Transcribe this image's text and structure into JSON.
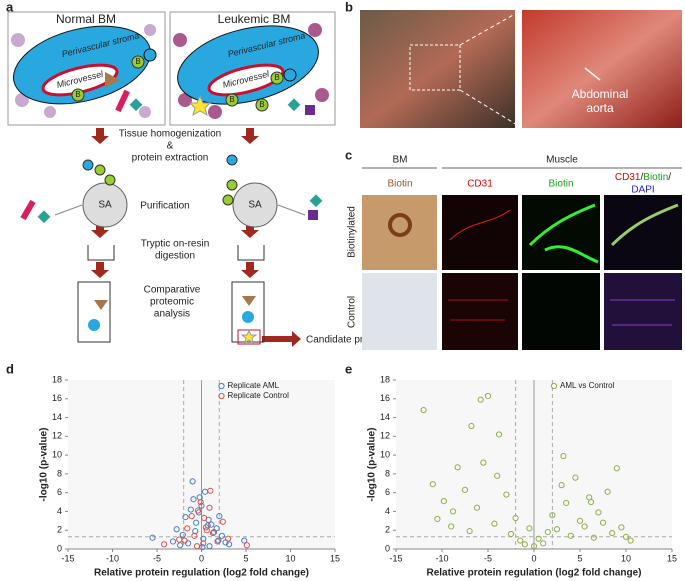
{
  "panel_a": {
    "label": "a",
    "normal_title": "Normal BM",
    "leukemic_title": "Leukemic BM",
    "stroma": "Perivascular stroma",
    "microvessel": "Microvessel",
    "biotin": "B",
    "sa": "SA",
    "step1": [
      "Tissue homogenization",
      "&",
      "protein extraction"
    ],
    "step2": "Purification",
    "step3": [
      "Tryptic on-resin",
      "digestion"
    ],
    "step4": [
      "Comparative",
      "proteomic",
      "analysis"
    ],
    "candidate": "Candidate protein"
  },
  "panel_b": {
    "label": "b",
    "annotation": [
      "Abdominal",
      "aorta"
    ]
  },
  "panel_c": {
    "label": "c",
    "group_headers": [
      "BM",
      "Muscle"
    ],
    "columns": [
      "Biotin",
      "CD31",
      "Biotin"
    ],
    "merge_label": [
      "CD31",
      "/",
      "Biotin",
      "/",
      "DAPI"
    ],
    "rows": [
      "Biotinylated",
      "Control"
    ]
  },
  "chart_data": [
    {
      "type": "scatter",
      "panel_label": "d",
      "xlabel": "Relative protein regulation (log2 fold change)",
      "ylabel": "-log10 (p-value)",
      "xlim": [
        -15,
        15
      ],
      "xticks": [
        -15,
        -10,
        -5,
        0,
        5,
        10,
        15
      ],
      "ylim": [
        0,
        18
      ],
      "yticks": [
        0,
        2,
        4,
        6,
        8,
        10,
        12,
        14,
        16,
        18
      ],
      "threshold_x": [
        -2,
        2
      ],
      "threshold_y": 1.3,
      "legend": "top",
      "series": [
        {
          "name": "Replicate AML",
          "color": "#4a7fc1",
          "x": [
            -5.5,
            -3.2,
            -2.8,
            -2.1,
            -1.8,
            -1.2,
            -0.9,
            -0.6,
            -0.3,
            0,
            0.2,
            0.5,
            0.8,
            1.1,
            1.4,
            1.9,
            2.3,
            2.7,
            3.1,
            -1.5,
            0.4,
            -0.2,
            1.7,
            -2.4,
            0.9,
            2.0,
            -0.7,
            0.1,
            4.8,
            -1.0
          ],
          "values": [
            1.2,
            0.8,
            2.1,
            1.5,
            3.4,
            4.2,
            5.3,
            2.8,
            3.9,
            4.6,
            1.1,
            2.3,
            3.1,
            2.6,
            1.8,
            0.9,
            1.4,
            0.7,
            0.5,
            0.6,
            6.1,
            5.5,
            2.2,
            0.4,
            0.3,
            3.5,
            1.9,
            0.2,
            0.9,
            7.2
          ]
        },
        {
          "name": "Replicate Control",
          "color": "#d9534f",
          "x": [
            -4.2,
            -2.5,
            -1.6,
            -1.1,
            -0.8,
            -0.4,
            -0.1,
            0.3,
            0.6,
            0.9,
            1.3,
            1.8,
            2.4,
            3.0,
            -0.5,
            0.2,
            1.0,
            -1.9,
            5.1,
            0.7
          ],
          "values": [
            0.5,
            1.0,
            2.2,
            3.5,
            1.4,
            4.1,
            5.0,
            3.3,
            2.0,
            4.4,
            1.7,
            0.8,
            2.9,
            1.1,
            0.3,
            0.6,
            6.2,
            0.9,
            0.4,
            2.5
          ]
        }
      ]
    },
    {
      "type": "scatter",
      "panel_label": "e",
      "xlabel": "Relative protein regulation (log2 fold change)",
      "ylabel": "-log10 (p-value)",
      "xlim": [
        -15,
        15
      ],
      "xticks": [
        -15,
        -10,
        -5,
        0,
        5,
        10,
        15
      ],
      "ylim": [
        0,
        18
      ],
      "yticks": [
        0,
        2,
        4,
        6,
        8,
        10,
        12,
        14,
        16,
        18
      ],
      "threshold_x": [
        -2,
        2
      ],
      "threshold_y": 1.3,
      "legend": "top",
      "series": [
        {
          "name": "AML vs Control",
          "color": "#8db04a",
          "x": [
            -12,
            -10.5,
            -9.8,
            -9,
            -8.3,
            -7.5,
            -7,
            -6.2,
            -5.5,
            -5,
            -4.3,
            -3.8,
            -3,
            -2.5,
            -2,
            -1.5,
            -1,
            -0.5,
            0,
            0.5,
            1,
            1.5,
            2,
            2.5,
            3,
            3.5,
            4,
            4.5,
            5,
            5.5,
            6,
            6.5,
            7,
            7.5,
            8,
            8.5,
            9,
            9.5,
            10,
            10.5,
            -11,
            -6.8,
            -4,
            -8.8,
            3.2,
            6.2,
            -5.8
          ],
          "values": [
            14.8,
            3.2,
            5.1,
            2.4,
            8.7,
            6.3,
            1.9,
            4.4,
            9.2,
            16.3,
            2.7,
            12.2,
            5.8,
            1.6,
            3.3,
            0.9,
            0.5,
            2.2,
            0.3,
            1.1,
            0.6,
            1.8,
            3.6,
            2.1,
            6.8,
            4.9,
            1.4,
            7.6,
            3.0,
            2.4,
            5.5,
            1.2,
            3.9,
            2.8,
            6.1,
            1.7,
            8.6,
            2.3,
            1.3,
            0.9,
            6.9,
            13.1,
            7.8,
            4.0,
            9.9,
            5.0,
            15.9
          ]
        }
      ]
    }
  ]
}
